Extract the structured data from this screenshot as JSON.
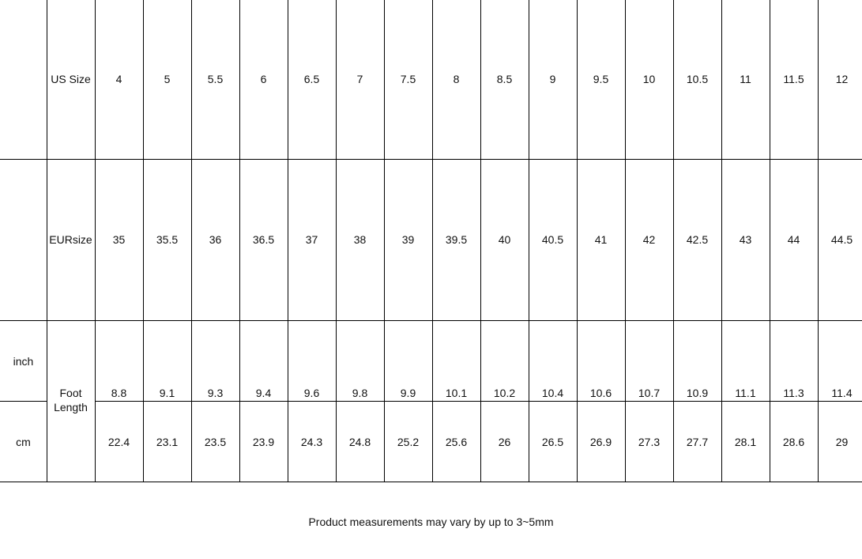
{
  "table": {
    "us_size": {
      "label": "US Size",
      "values": [
        4,
        5,
        5.5,
        6,
        6.5,
        7,
        7.5,
        8,
        8.5,
        9,
        9.5,
        10,
        10.5,
        11,
        11.5,
        12
      ]
    },
    "eur_size": {
      "label": "EURsize",
      "values": [
        35,
        35.5,
        36,
        36.5,
        37,
        38,
        39,
        39.5,
        40,
        40.5,
        41,
        42,
        42.5,
        43,
        44,
        44.5
      ]
    },
    "foot_length": {
      "label": "Foot Length",
      "inch": {
        "unit": "inch",
        "values": [
          8.8,
          9.1,
          9.3,
          9.4,
          9.6,
          9.8,
          9.9,
          10.1,
          10.2,
          10.4,
          10.6,
          10.7,
          10.9,
          11.1,
          11.3,
          11.4
        ]
      },
      "cm": {
        "unit": "cm",
        "values": [
          22.4,
          23.1,
          23.5,
          23.9,
          24.3,
          24.8,
          25.2,
          25.6,
          26,
          26.5,
          26.9,
          27.3,
          27.7,
          28.1,
          28.6,
          29
        ]
      }
    }
  },
  "note": "Product measurements may vary by up to 3~5mm"
}
